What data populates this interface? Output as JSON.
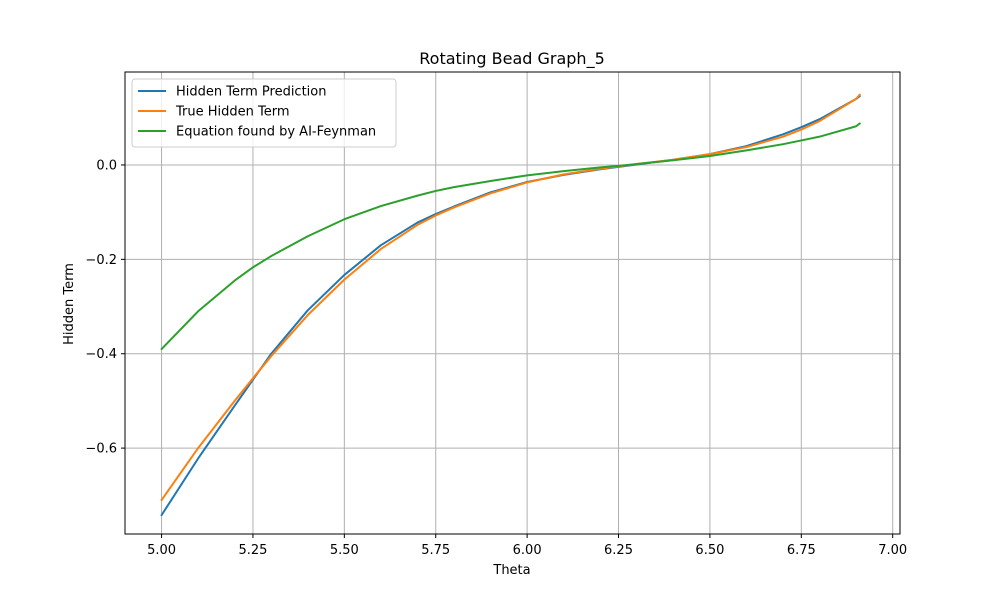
{
  "chart_data": {
    "type": "line",
    "title": "Rotating Bead Graph_5",
    "xlabel": "Theta",
    "ylabel": "Hidden Term",
    "xlim": [
      4.9,
      7.02
    ],
    "ylim": [
      -0.782,
      0.197
    ],
    "xticks": [
      5.0,
      5.25,
      5.5,
      5.75,
      6.0,
      6.25,
      6.5,
      6.75,
      7.0
    ],
    "xtick_labels": [
      "5.00",
      "5.25",
      "5.50",
      "5.75",
      "6.00",
      "6.25",
      "6.50",
      "6.75",
      "7.00"
    ],
    "yticks": [
      -0.6,
      -0.4,
      -0.2,
      0.0
    ],
    "ytick_labels": [
      "−0.6",
      "−0.4",
      "−0.2",
      "0.0"
    ],
    "grid": true,
    "legend_position": "top-left",
    "x": [
      5.0,
      5.1,
      5.2,
      5.25,
      5.3,
      5.4,
      5.5,
      5.6,
      5.7,
      5.75,
      5.8,
      5.9,
      6.0,
      6.1,
      6.2,
      6.25,
      6.3,
      6.4,
      6.5,
      6.6,
      6.7,
      6.75,
      6.8,
      6.9,
      6.91
    ],
    "series": [
      {
        "name": "Hidden Term Prediction",
        "color": "#1f77b4",
        "values": [
          -0.742,
          -0.622,
          -0.51,
          -0.455,
          -0.4,
          -0.308,
          -0.233,
          -0.17,
          -0.122,
          -0.104,
          -0.088,
          -0.058,
          -0.036,
          -0.021,
          -0.009,
          -0.004,
          0.001,
          0.011,
          0.023,
          0.04,
          0.065,
          0.08,
          0.097,
          0.14,
          0.146
        ]
      },
      {
        "name": "True Hidden Term",
        "color": "#ff7f0e",
        "values": [
          -0.71,
          -0.6,
          -0.5,
          -0.452,
          -0.405,
          -0.318,
          -0.243,
          -0.178,
          -0.127,
          -0.107,
          -0.09,
          -0.06,
          -0.037,
          -0.02,
          -0.008,
          -0.003,
          0.002,
          0.011,
          0.023,
          0.038,
          0.06,
          0.075,
          0.093,
          0.14,
          0.149
        ]
      },
      {
        "name": "Equation found by AI-Feynman",
        "color": "#2ca02c",
        "values": [
          -0.39,
          -0.31,
          -0.245,
          -0.217,
          -0.193,
          -0.151,
          -0.115,
          -0.087,
          -0.065,
          -0.055,
          -0.047,
          -0.034,
          -0.022,
          -0.013,
          -0.005,
          -0.002,
          0.002,
          0.01,
          0.019,
          0.031,
          0.044,
          0.052,
          0.06,
          0.082,
          0.088
        ]
      }
    ]
  }
}
